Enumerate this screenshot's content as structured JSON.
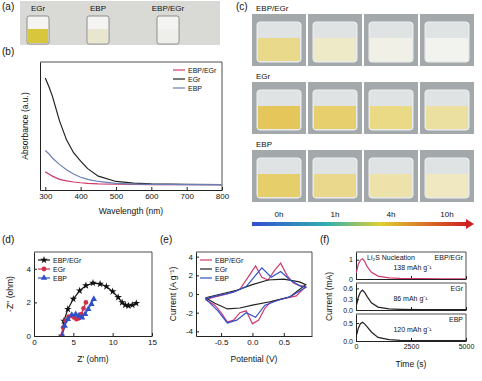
{
  "panel_labels": [
    "(a)",
    "(b)",
    "(c)",
    "(d)",
    "(e)",
    "(f)"
  ],
  "photo_a": {
    "labels": [
      "EGr",
      "EBP",
      "EBP/EGr"
    ]
  },
  "photo_c": {
    "rows": [
      "EBP/EGr",
      "EGr",
      "EBP"
    ],
    "times": [
      "0h",
      "1h",
      "4h",
      "10h"
    ]
  },
  "chart_data": [
    {
      "type": "line",
      "xlabel": "Wavelength (nm)",
      "ylabel": "Absorbance (a.u.)",
      "x": [
        300,
        310,
        320,
        340,
        360,
        380,
        400,
        420,
        450,
        500,
        550,
        600,
        700,
        800
      ],
      "xlim": [
        285,
        800
      ],
      "xticks": [
        300,
        400,
        500,
        600,
        700,
        800
      ],
      "ylim": [
        -0.05,
        1.15
      ],
      "tick_labels": "x",
      "legend": "upper right",
      "series": [
        {
          "name": "EBP/EGr",
          "color": "#d2386c",
          "values": [
            0.12,
            0.1,
            0.08,
            0.05,
            0.035,
            0.025,
            0.018,
            0.013,
            0.008,
            0.004,
            0.002,
            0.001,
            0,
            0
          ]
        },
        {
          "name": "EGr",
          "color": "#222222",
          "values": [
            1.0,
            0.92,
            0.83,
            0.6,
            0.42,
            0.3,
            0.22,
            0.15,
            0.08,
            0.03,
            0.015,
            0.008,
            0.003,
            0
          ]
        },
        {
          "name": "EBP",
          "color": "#6a7fb5",
          "values": [
            0.32,
            0.29,
            0.25,
            0.19,
            0.14,
            0.1,
            0.07,
            0.05,
            0.03,
            0.012,
            0.006,
            0.003,
            0.001,
            0
          ]
        }
      ]
    },
    {
      "type": "line",
      "xlabel": "Z' (ohm)",
      "ylabel": "-Z'' (ohm)",
      "xlim": [
        0,
        15
      ],
      "xticks": [
        0,
        5,
        10,
        15
      ],
      "ylim": [
        0,
        5
      ],
      "yticks": [
        0,
        2,
        4
      ],
      "legend": "upper left",
      "series": [
        {
          "name": "EBP/EGr",
          "color": "#111111",
          "marker": "star",
          "x": [
            3.5,
            3.8,
            4.3,
            5.0,
            5.8,
            6.6,
            7.5,
            8.4,
            9.2,
            10.0,
            10.7,
            11.2,
            11.6,
            12.0,
            12.5,
            13.0
          ],
          "values": [
            0,
            0.9,
            1.6,
            2.2,
            2.7,
            3.0,
            3.15,
            3.1,
            2.95,
            2.65,
            2.3,
            2.0,
            1.85,
            1.8,
            1.85,
            1.95
          ]
        },
        {
          "name": "EGr",
          "color": "#d0304a",
          "marker": "circle",
          "x": [
            3.5,
            3.7,
            4.0,
            4.4,
            4.8,
            5.1,
            5.4,
            5.7,
            6.0,
            6.3,
            6.6
          ],
          "values": [
            0,
            0.5,
            0.9,
            1.15,
            1.2,
            1.1,
            1.0,
            1.05,
            1.3,
            1.65,
            2.0
          ]
        },
        {
          "name": "EBP",
          "color": "#3050c8",
          "marker": "triangle",
          "x": [
            3.6,
            3.9,
            4.3,
            4.8,
            5.3,
            5.7,
            6.1,
            6.5,
            6.9,
            7.3,
            7.6
          ],
          "values": [
            0,
            0.6,
            1.0,
            1.25,
            1.3,
            1.2,
            1.1,
            1.3,
            1.6,
            1.9,
            2.2
          ]
        }
      ]
    },
    {
      "type": "line",
      "xlabel": "Potential (V)",
      "ylabel": "Current (A g⁻¹)",
      "xlim": [
        -0.9,
        0.95
      ],
      "xticks": [
        -0.5,
        {
          "value": 0,
          "label": "0.0"
        },
        0.5
      ],
      "ylim": [
        -4.5,
        4.5
      ],
      "yticks": [
        -4,
        -2,
        0,
        2,
        4
      ],
      "legend": "upper left",
      "series": [
        {
          "name": "EBP/EGr",
          "color": "#d2386c",
          "x": [
            -0.75,
            -0.6,
            -0.4,
            -0.2,
            -0.05,
            0.05,
            0.15,
            0.25,
            0.35,
            0.45,
            0.55,
            0.65,
            0.75,
            0.85,
            0.85,
            0.7,
            0.5,
            0.3,
            0.2,
            0.1,
            0,
            -0.1,
            -0.2,
            -0.3,
            -0.4,
            -0.5,
            -0.6,
            -0.75
          ],
          "values": [
            -0.6,
            -0.3,
            0,
            0.5,
            2.0,
            3.0,
            1.8,
            1.5,
            2.5,
            3.3,
            2.0,
            1.2,
            0.9,
            0.8,
            0.8,
            -0.2,
            -0.5,
            -0.8,
            -1.5,
            -2.8,
            -3.2,
            -1.8,
            -2.0,
            -2.8,
            -3.0,
            -2.0,
            -1.2,
            -0.6
          ]
        },
        {
          "name": "EGr",
          "color": "#222222",
          "x": [
            -0.75,
            -0.5,
            -0.25,
            0,
            0.25,
            0.5,
            0.75,
            0.85,
            0.85,
            0.6,
            0.3,
            0,
            -0.2,
            -0.4,
            -0.6,
            -0.75
          ],
          "values": [
            -0.4,
            0,
            0.4,
            1.0,
            1.5,
            1.6,
            1.3,
            1.0,
            1.0,
            -0.3,
            -0.8,
            -1.2,
            -1.5,
            -1.6,
            -1.0,
            -0.4
          ]
        },
        {
          "name": "EBP",
          "color": "#3050c8",
          "x": [
            -0.75,
            -0.5,
            -0.3,
            -0.1,
            0.05,
            0.15,
            0.3,
            0.45,
            0.6,
            0.75,
            0.85,
            0.85,
            0.6,
            0.4,
            0.2,
            0.05,
            -0.1,
            -0.25,
            -0.4,
            -0.55,
            -0.75
          ],
          "values": [
            -0.5,
            -0.1,
            0.2,
            0.8,
            2.0,
            2.8,
            1.8,
            2.4,
            1.5,
            0.9,
            0.7,
            0.7,
            -0.3,
            -0.7,
            -1.2,
            -2.5,
            -2.0,
            -2.8,
            -3.1,
            -1.8,
            -0.5
          ]
        }
      ]
    },
    {
      "type": "line",
      "x": [
        0,
        50,
        100,
        200,
        300,
        400,
        500,
        700,
        1000,
        1500,
        2000,
        3000,
        4000,
        5000
      ],
      "xlim": [
        0,
        5000
      ],
      "xticks": [
        0,
        2500,
        5000
      ],
      "ylim": [
        0,
        1.4
      ],
      "yticks": [
        0,
        1
      ],
      "tick_labels": "y",
      "annotations": [
        "Li₂S Nucleation",
        "138 mAh g⁻¹"
      ],
      "series": [
        {
          "name": "EBP/EGr",
          "color": "#d2386c",
          "values": [
            0.3,
            0.5,
            0.75,
            0.98,
            1.05,
            0.9,
            0.65,
            0.35,
            0.15,
            0.06,
            0.03,
            0.02,
            0.01,
            0.01
          ]
        }
      ]
    },
    {
      "type": "line",
      "ylabel": "Current (mA)",
      "x": [
        0,
        50,
        100,
        200,
        300,
        400,
        500,
        700,
        1000,
        1500,
        2000,
        3000,
        4000,
        5000
      ],
      "xlim": [
        0,
        5000
      ],
      "xticks": [
        0,
        2500,
        5000
      ],
      "ylim": [
        0,
        0.75
      ],
      "yticks": [
        {
          "value": 0,
          "label": "0.0"
        },
        0.3,
        0.6
      ],
      "tick_labels": "y",
      "annotations": [
        "86 mAh g⁻¹"
      ],
      "series": [
        {
          "name": "EGr",
          "color": "#222222",
          "values": [
            0.1,
            0.2,
            0.35,
            0.5,
            0.55,
            0.48,
            0.38,
            0.2,
            0.08,
            0.03,
            0.02,
            0.01,
            0.01,
            0.01
          ]
        }
      ]
    },
    {
      "type": "line",
      "xlabel": "Time (s)",
      "x": [
        0,
        50,
        100,
        200,
        300,
        400,
        500,
        700,
        1000,
        1500,
        2000,
        3000,
        4000,
        5000
      ],
      "xlim": [
        0,
        5000
      ],
      "xticks": [
        0,
        2500,
        5000
      ],
      "ylim": [
        0,
        0.75
      ],
      "yticks": [
        {
          "value": 0,
          "label": "0.0"
        },
        0.5
      ],
      "annotations": [
        "120 mAh g⁻¹"
      ],
      "series": [
        {
          "name": "EBP",
          "color": "#222222",
          "values": [
            0.12,
            0.22,
            0.35,
            0.48,
            0.52,
            0.47,
            0.4,
            0.25,
            0.1,
            0.04,
            0.02,
            0.01,
            0.01,
            0.01
          ]
        }
      ]
    }
  ]
}
